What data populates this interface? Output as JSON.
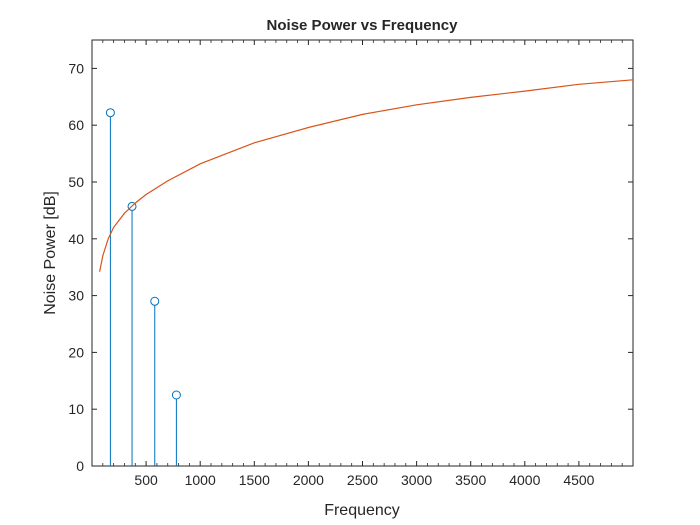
{
  "chart_data": {
    "type": "line",
    "title": "Noise Power vs Frequency",
    "xlabel": "Frequency",
    "ylabel": "Noise Power [dB]",
    "xlim": [
      0,
      5000
    ],
    "ylim": [
      0,
      75
    ],
    "x_ticks": [
      500,
      1000,
      1500,
      2000,
      2500,
      3000,
      3500,
      4000,
      4500
    ],
    "y_ticks": [
      0,
      10,
      20,
      30,
      40,
      50,
      60,
      70
    ],
    "grid": false,
    "legend": "none",
    "series": [
      {
        "kind": "stem",
        "color": "#0072bd",
        "x": [
          170,
          370,
          580,
          780
        ],
        "y": [
          62.2,
          45.7,
          29.0,
          12.5
        ]
      },
      {
        "kind": "line",
        "color": "#d95319",
        "x": [
          70,
          100,
          150,
          200,
          300,
          400,
          500,
          700,
          1000,
          1500,
          2000,
          2500,
          3000,
          3500,
          4000,
          4500,
          5000
        ],
        "y": [
          34.2,
          37.0,
          40.0,
          42.0,
          44.5,
          46.3,
          47.8,
          50.2,
          53.2,
          56.9,
          59.6,
          61.9,
          63.6,
          64.9,
          66.0,
          67.2,
          68.0
        ]
      }
    ],
    "colors": {
      "axis": "#262626",
      "stem": "#0072bd",
      "curve": "#d95319"
    }
  }
}
